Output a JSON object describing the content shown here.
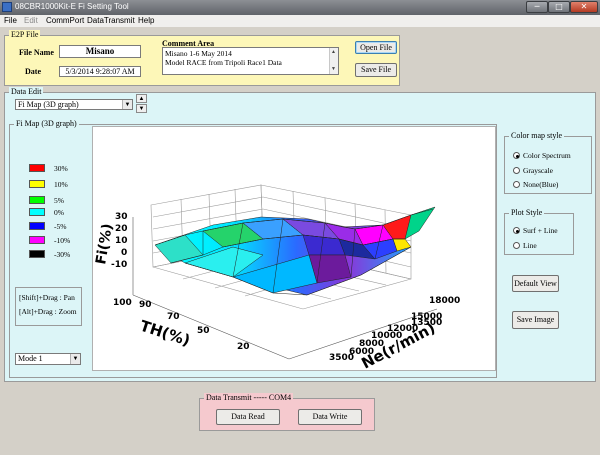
{
  "window": {
    "title": "08CBR1000Kit-E Fi Setting Tool",
    "min": "─",
    "max": "□",
    "close": "✕"
  },
  "menu": [
    "File",
    "Edit",
    "CommPort",
    "DataTransmit",
    "Help"
  ],
  "e2p": {
    "legend": "E2P File",
    "file_name_label": "File Name",
    "file_name": "Misano",
    "date_label": "Date",
    "date": "5/3/2014 9:28:07 AM",
    "comment_title": "Comment Area",
    "comment_lines": [
      "Misano 1-6 May 2014",
      "Model RACE from Tripoli Race1 Data"
    ],
    "open_button": "Open File",
    "save_button": "Save File"
  },
  "data_edit": {
    "legend": "Data Edit",
    "map_select": "Fi Map (3D graph)",
    "group_title": "Fi Map (3D graph)",
    "mode_select": "Mode 1",
    "hints": [
      "[Shift]+Drag : Pan",
      "[Alt]+Drag   : Zoom"
    ]
  },
  "color_legend": [
    {
      "label": "30%",
      "color": "#ff0000"
    },
    {
      "label": "10%",
      "color": "#ffff00"
    },
    {
      "label": "5%",
      "color": "#00ff00"
    },
    {
      "label": "0%",
      "color": "#00ffff"
    },
    {
      "label": "-5%",
      "color": "#0000ff"
    },
    {
      "label": "-10%",
      "color": "#ff00ff"
    },
    {
      "label": "-30%",
      "color": "#000000"
    }
  ],
  "graph": {
    "z_label": "Fi(%)",
    "z_ticks": [
      "30",
      "20",
      "10",
      "0",
      "-10"
    ],
    "th_label": "TH(%)",
    "th_ticks": [
      "100",
      "90",
      "70",
      "50",
      "20"
    ],
    "ne_label": "Ne(r/min)",
    "ne_ticks": [
      "18000",
      "15000",
      "13500",
      "12000",
      "10000",
      "8000",
      "6000",
      "3500"
    ]
  },
  "color_map_style": {
    "title": "Color map style",
    "options": [
      {
        "label": "Color Spectrum",
        "selected": true
      },
      {
        "label": "Grayscale",
        "selected": false
      },
      {
        "label": "None(Blue)",
        "selected": false
      }
    ]
  },
  "plot_style": {
    "title": "Plot Style",
    "options": [
      {
        "label": "Surf + Line",
        "selected": true
      },
      {
        "label": "Line",
        "selected": false
      }
    ]
  },
  "buttons": {
    "default_view": "Default View",
    "save_image": "Save Image"
  },
  "transmit": {
    "legend": "Data Transmit ----- COM4",
    "read": "Data Read",
    "write": "Data Write"
  }
}
